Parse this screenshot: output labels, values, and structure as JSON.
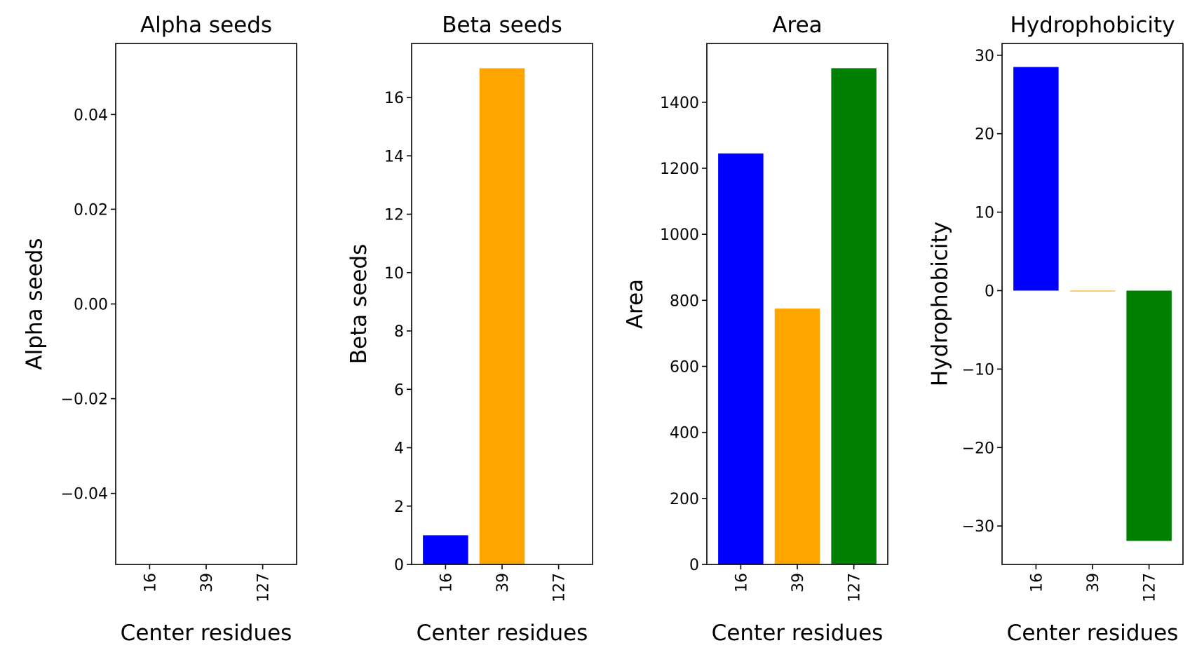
{
  "chart_data": [
    {
      "type": "bar",
      "title": "Alpha seeds",
      "xlabel": "Center residues",
      "ylabel": "Alpha seeds",
      "categories": [
        "16",
        "39",
        "127"
      ],
      "values": [
        0,
        0,
        0
      ],
      "colors": [
        "#0000ff",
        "#ffa500",
        "#008000"
      ],
      "ylim": [
        -0.055,
        0.055
      ],
      "yticks": [
        -0.04,
        -0.02,
        0.0,
        0.02,
        0.04
      ],
      "ytick_labels": [
        "−0.04",
        "−0.02",
        "0.00",
        "0.02",
        "0.04"
      ],
      "grid": false
    },
    {
      "type": "bar",
      "title": "Beta seeds",
      "xlabel": "Center residues",
      "ylabel": "Beta seeds",
      "categories": [
        "16",
        "39",
        "127"
      ],
      "values": [
        1,
        17,
        0
      ],
      "colors": [
        "#0000ff",
        "#ffa500",
        "#008000"
      ],
      "ylim": [
        0,
        17.85
      ],
      "yticks": [
        0,
        2,
        4,
        6,
        8,
        10,
        12,
        14,
        16
      ],
      "ytick_labels": [
        "0",
        "2",
        "4",
        "6",
        "8",
        "10",
        "12",
        "14",
        "16"
      ],
      "grid": false
    },
    {
      "type": "bar",
      "title": "Area",
      "xlabel": "Center residues",
      "ylabel": "Area",
      "categories": [
        "16",
        "39",
        "127"
      ],
      "values": [
        1245,
        775,
        1503
      ],
      "colors": [
        "#0000ff",
        "#ffa500",
        "#008000"
      ],
      "ylim": [
        0,
        1578
      ],
      "yticks": [
        0,
        200,
        400,
        600,
        800,
        1000,
        1200,
        1400
      ],
      "ytick_labels": [
        "0",
        "200",
        "400",
        "600",
        "800",
        "1000",
        "1200",
        "1400"
      ],
      "grid": false
    },
    {
      "type": "bar",
      "title": "Hydrophobicity",
      "xlabel": "Center residues",
      "ylabel": "Hydrophobicity",
      "categories": [
        "16",
        "39",
        "127"
      ],
      "values": [
        28.5,
        -0.1,
        -31.9
      ],
      "colors": [
        "#0000ff",
        "#ffa500",
        "#008000"
      ],
      "ylim": [
        -34.9,
        31.5
      ],
      "yticks": [
        -30,
        -20,
        -10,
        0,
        10,
        20,
        30
      ],
      "ytick_labels": [
        "−30",
        "−20",
        "−10",
        "0",
        "10",
        "20",
        "30"
      ],
      "grid": false
    }
  ]
}
